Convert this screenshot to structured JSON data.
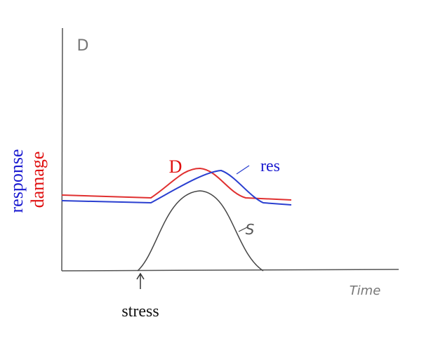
{
  "y_axis_label": "D",
  "side_labels": {
    "response": "response",
    "damage": "damage"
  },
  "curve_labels": {
    "damage": "D",
    "response": "res",
    "stress": "S"
  },
  "stimulus_label": "stress",
  "x_axis_label": "Time"
}
